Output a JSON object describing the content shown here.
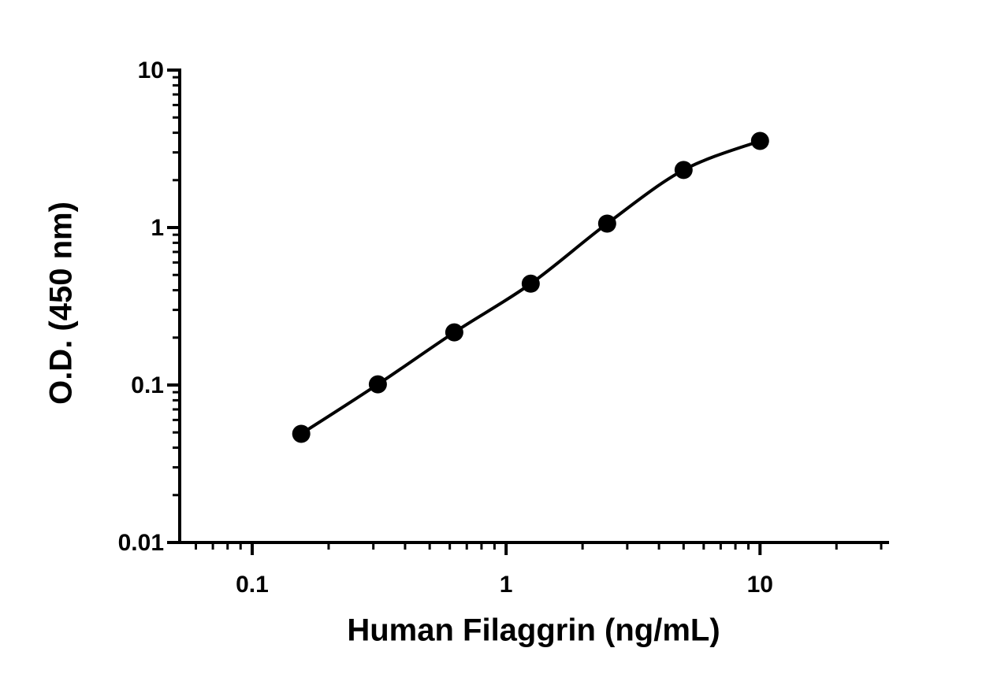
{
  "chart_data": {
    "type": "line",
    "x_label": "Human Filaggrin (ng/mL)",
    "y_label": "O.D. (450 nm)",
    "x": [
      0.156,
      0.3125,
      0.625,
      1.25,
      2.5,
      5,
      10
    ],
    "series": [
      {
        "color": "#000000",
        "values": [
          0.049,
          0.101,
          0.216,
          0.44,
          1.06,
          2.32,
          3.55
        ]
      }
    ],
    "xlim": [
      0.05,
      30
    ],
    "ylim": [
      0.01,
      10
    ],
    "xticks": [
      0.1,
      1,
      10
    ],
    "yticks": [
      0.01,
      0.1,
      1,
      10
    ],
    "xscale": "log",
    "yscale": "log",
    "markers": true,
    "smooth": true,
    "grid": false
  }
}
